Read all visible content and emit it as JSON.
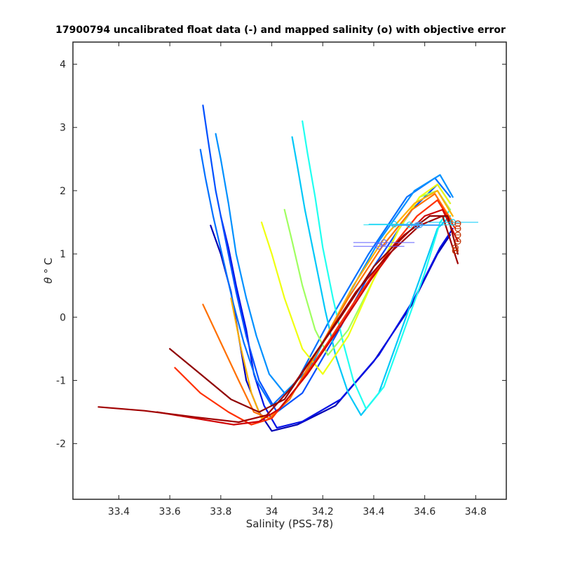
{
  "chart_data": {
    "type": "line",
    "title": "17900794 uncalibrated float data (-) and mapped salinity (o) with objective error",
    "xlabel": "Salinity (PSS-78)",
    "ylabel_symbol": "θ",
    "ylabel_unit": "° C",
    "xlim": [
      33.22,
      34.92
    ],
    "ylim": [
      -2.88,
      4.35
    ],
    "xticks": [
      33.4,
      33.6,
      33.8,
      34.0,
      34.2,
      34.4,
      34.6,
      34.8
    ],
    "xtick_labels": [
      "33.4",
      "33.6",
      "33.8",
      "34",
      "34.2",
      "34.4",
      "34.6",
      "34.8"
    ],
    "yticks": [
      -2,
      -1,
      0,
      1,
      2,
      3,
      4
    ],
    "ytick_labels": [
      "-2",
      "-1",
      "0",
      "1",
      "2",
      "3",
      "4"
    ],
    "grid": false,
    "legend": "none",
    "colormap": "jet",
    "series": [
      {
        "color": "#0000b3",
        "x": [
          33.76,
          33.8,
          33.84,
          33.87,
          33.9,
          33.95,
          34.0,
          34.1,
          34.25,
          34.4,
          34.55,
          34.65,
          34.7
        ],
        "y": [
          1.45,
          1.0,
          0.4,
          -0.3,
          -1.0,
          -1.5,
          -1.8,
          -1.7,
          -1.4,
          -0.7,
          0.2,
          1.0,
          1.3
        ]
      },
      {
        "color": "#0010e6",
        "x": [
          33.8,
          33.83,
          33.86,
          33.9,
          33.93,
          33.97,
          34.02,
          34.12,
          34.27,
          34.42,
          34.56,
          34.66,
          34.71
        ],
        "y": [
          1.6,
          1.1,
          0.5,
          -0.2,
          -0.9,
          -1.4,
          -1.75,
          -1.65,
          -1.3,
          -0.6,
          0.3,
          1.1,
          1.4
        ]
      },
      {
        "color": "#0050ff",
        "x": [
          33.73,
          33.75,
          33.78,
          33.82,
          33.86,
          33.9,
          33.95,
          34.02,
          34.12,
          34.25,
          34.4,
          34.55,
          34.65,
          34.7
        ],
        "y": [
          3.35,
          2.8,
          2.0,
          1.2,
          0.4,
          -0.3,
          -1.0,
          -1.5,
          -1.2,
          -0.3,
          0.8,
          1.7,
          2.1,
          1.8
        ]
      },
      {
        "color": "#0070ff",
        "x": [
          33.72,
          33.74,
          33.77,
          33.81,
          33.85,
          33.89,
          33.94,
          34.0,
          34.1,
          34.22,
          34.38,
          34.53,
          34.64,
          34.7
        ],
        "y": [
          2.65,
          2.2,
          1.6,
          0.9,
          0.2,
          -0.4,
          -1.0,
          -1.4,
          -1.0,
          -0.1,
          1.0,
          1.9,
          2.2,
          1.9
        ]
      },
      {
        "color": "#0090ff",
        "x": [
          33.78,
          33.8,
          33.83,
          33.86,
          33.9,
          33.94,
          33.99,
          34.05,
          34.15,
          34.28,
          34.42,
          34.56,
          34.66,
          34.71
        ],
        "y": [
          2.9,
          2.5,
          1.8,
          1.0,
          0.3,
          -0.3,
          -0.9,
          -1.2,
          -0.8,
          0.2,
          1.2,
          2.0,
          2.25,
          1.9
        ]
      },
      {
        "color": "#00c8f8",
        "x": [
          34.08,
          34.1,
          34.13,
          34.17,
          34.21,
          34.25,
          34.3,
          34.35,
          34.42,
          34.5,
          34.58,
          34.65,
          34.7
        ],
        "y": [
          2.85,
          2.4,
          1.7,
          0.9,
          0.1,
          -0.6,
          -1.2,
          -1.55,
          -1.2,
          -0.3,
          0.6,
          1.4,
          1.6
        ]
      },
      {
        "color": "#20fff0",
        "x": [
          34.12,
          34.14,
          34.17,
          34.2,
          34.24,
          34.28,
          34.32,
          34.37,
          34.44,
          34.52,
          34.6,
          34.66,
          34.7
        ],
        "y": [
          3.1,
          2.6,
          1.9,
          1.1,
          0.3,
          -0.4,
          -1.0,
          -1.45,
          -1.1,
          -0.2,
          0.7,
          1.5,
          1.7
        ]
      },
      {
        "color": "#a0ff60",
        "x": [
          34.05,
          34.08,
          34.12,
          34.17,
          34.22,
          34.3,
          34.4,
          34.5,
          34.58,
          34.65,
          34.7
        ],
        "y": [
          1.7,
          1.2,
          0.5,
          -0.2,
          -0.6,
          -0.2,
          0.6,
          1.4,
          1.9,
          2.0,
          1.7
        ]
      },
      {
        "color": "#f0ff10",
        "x": [
          33.96,
          34.0,
          34.05,
          34.12,
          34.2,
          34.3,
          34.4,
          34.5,
          34.58,
          34.65,
          34.7
        ],
        "y": [
          1.5,
          1.0,
          0.3,
          -0.5,
          -0.9,
          -0.3,
          0.6,
          1.4,
          1.9,
          2.1,
          1.8
        ]
      },
      {
        "color": "#ffb000",
        "x": [
          33.84,
          33.88,
          33.92,
          33.96,
          34.02,
          34.1,
          34.2,
          34.32,
          34.45,
          34.56,
          34.65,
          34.71
        ],
        "y": [
          0.3,
          -0.5,
          -1.2,
          -1.6,
          -1.5,
          -1.1,
          -0.4,
          0.5,
          1.3,
          1.8,
          2.0,
          1.6
        ]
      },
      {
        "color": "#ff7000",
        "x": [
          33.73,
          33.8,
          33.87,
          33.93,
          33.99,
          34.07,
          34.17,
          34.3,
          34.43,
          34.55,
          34.64,
          34.71
        ],
        "y": [
          0.2,
          -0.4,
          -1.0,
          -1.5,
          -1.6,
          -1.3,
          -0.6,
          0.3,
          1.1,
          1.7,
          1.95,
          1.5
        ]
      },
      {
        "color": "#ff3000",
        "x": [
          33.62,
          33.72,
          33.83,
          33.92,
          34.0,
          34.1,
          34.22,
          34.35,
          34.47,
          34.57,
          34.65,
          34.72
        ],
        "y": [
          -0.8,
          -1.2,
          -1.5,
          -1.7,
          -1.6,
          -1.1,
          -0.4,
          0.4,
          1.1,
          1.6,
          1.85,
          1.4
        ]
      },
      {
        "color": "#d00000",
        "x": [
          33.55,
          33.7,
          33.85,
          33.95,
          34.03,
          34.14,
          34.26,
          34.39,
          34.5,
          34.6,
          34.67,
          34.73
        ],
        "y": [
          -1.5,
          -1.6,
          -1.7,
          -1.65,
          -1.45,
          -0.9,
          -0.2,
          0.6,
          1.2,
          1.6,
          1.7,
          1.2
        ]
      },
      {
        "color": "#a00000",
        "x": [
          33.32,
          33.5,
          33.7,
          33.87,
          33.98,
          34.08,
          34.2,
          34.33,
          34.46,
          34.58,
          34.67,
          34.73
        ],
        "y": [
          -1.42,
          -1.48,
          -1.58,
          -1.66,
          -1.55,
          -1.1,
          -0.4,
          0.4,
          1.0,
          1.45,
          1.6,
          0.85
        ]
      },
      {
        "color": "#900000",
        "x": [
          33.6,
          33.72,
          33.84,
          33.95,
          34.05,
          34.15,
          34.27,
          34.4,
          34.52,
          34.62,
          34.69,
          34.73
        ],
        "y": [
          -0.5,
          -0.9,
          -1.3,
          -1.5,
          -1.3,
          -0.7,
          0.0,
          0.8,
          1.3,
          1.6,
          1.6,
          1.0
        ]
      }
    ],
    "mapped_salinity": {
      "marker": "o",
      "points": [
        {
          "x": 34.48,
          "y": 1.47,
          "err": 0.1,
          "color": "#00c8f8"
        },
        {
          "x": 34.54,
          "y": 1.46,
          "err": 0.18,
          "color": "#20e0f0"
        },
        {
          "x": 34.57,
          "y": 1.45,
          "err": 0.1,
          "color": "#40a0ff"
        },
        {
          "x": 34.58,
          "y": 1.46,
          "err": 0.08,
          "color": "#40a0ff"
        },
        {
          "x": 34.44,
          "y": 1.18,
          "err": 0.12,
          "color": "#6060ff"
        },
        {
          "x": 34.42,
          "y": 1.12,
          "err": 0.1,
          "color": "#6060ff"
        },
        {
          "x": 34.71,
          "y": 1.5,
          "err": 0.1,
          "color": "#00c8f8"
        },
        {
          "x": 34.73,
          "y": 1.48,
          "err": 0.01,
          "color": "#c03000"
        },
        {
          "x": 34.73,
          "y": 1.4,
          "err": 0.01,
          "color": "#c03000"
        },
        {
          "x": 34.73,
          "y": 1.3,
          "err": 0.01,
          "color": "#c03000"
        },
        {
          "x": 34.73,
          "y": 1.2,
          "err": 0.01,
          "color": "#c03000"
        },
        {
          "x": 34.72,
          "y": 1.1,
          "err": 0.01,
          "color": "#c03000"
        },
        {
          "x": 34.72,
          "y": 1.05,
          "err": 0.01,
          "color": "#c03000"
        }
      ]
    }
  }
}
